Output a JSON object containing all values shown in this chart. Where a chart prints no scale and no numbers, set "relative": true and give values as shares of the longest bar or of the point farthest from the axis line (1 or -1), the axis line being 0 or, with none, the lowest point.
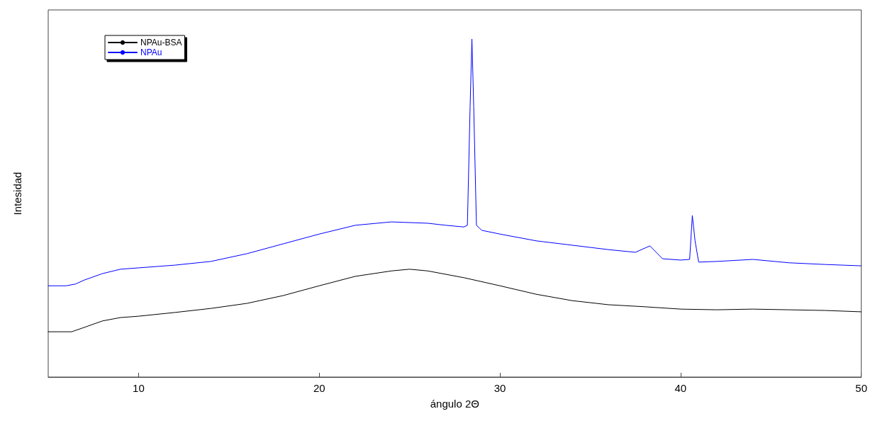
{
  "chart_data": {
    "type": "line",
    "xlabel": "ángulo 2Θ",
    "ylabel": "Intesidad",
    "relative": true,
    "xlim": [
      5,
      50
    ],
    "xticks": [
      10,
      20,
      30,
      40,
      50
    ],
    "grid": false,
    "legend": "top left",
    "line_style": "solid",
    "series": [
      {
        "name": "NPAu-BSA",
        "color": "#000000",
        "x": [
          5,
          6.3,
          7,
          8,
          9,
          10,
          12,
          14,
          16,
          18,
          20,
          22,
          24,
          25,
          26,
          28,
          30,
          32,
          34,
          36,
          38,
          40,
          42,
          44,
          46,
          48,
          50
        ],
        "values": [
          0.134,
          0.134,
          0.147,
          0.166,
          0.176,
          0.18,
          0.191,
          0.203,
          0.218,
          0.241,
          0.27,
          0.298,
          0.314,
          0.319,
          0.314,
          0.294,
          0.27,
          0.245,
          0.226,
          0.214,
          0.208,
          0.201,
          0.199,
          0.201,
          0.199,
          0.197,
          0.193
        ]
      },
      {
        "name": "NPAu",
        "color": "#0000ff",
        "x": [
          5,
          6,
          6.5,
          7,
          8,
          9,
          10,
          12,
          14,
          16,
          18,
          20,
          22,
          24,
          26,
          27,
          28,
          28.2,
          28.35,
          28.45,
          28.55,
          28.7,
          29,
          30,
          32,
          34,
          36,
          37.5,
          38.3,
          39,
          40,
          40.5,
          40.65,
          40.8,
          41,
          42,
          44,
          46,
          48,
          50
        ],
        "values": [
          0.27,
          0.27,
          0.275,
          0.287,
          0.306,
          0.319,
          0.323,
          0.331,
          0.342,
          0.365,
          0.394,
          0.423,
          0.449,
          0.459,
          0.455,
          0.449,
          0.444,
          0.449,
          0.8,
          1,
          0.8,
          0.449,
          0.434,
          0.423,
          0.403,
          0.39,
          0.377,
          0.369,
          0.388,
          0.35,
          0.346,
          0.348,
          0.478,
          0.403,
          0.34,
          0.342,
          0.348,
          0.338,
          0.333,
          0.329
        ]
      }
    ]
  }
}
